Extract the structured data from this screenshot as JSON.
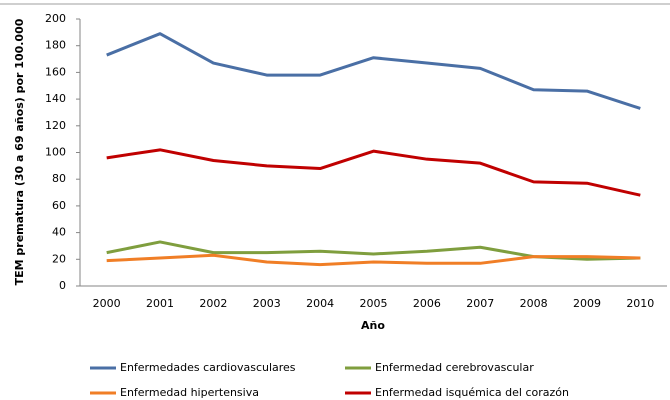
{
  "chart_data": {
    "type": "line",
    "y_label": "TEM prematura (30 a 69 años) por 100.000",
    "x_label": "Año",
    "categories": [
      "2000",
      "2001",
      "2002",
      "2003",
      "2004",
      "2005",
      "2006",
      "2007",
      "2008",
      "2009",
      "2010"
    ],
    "series": [
      {
        "name": "Enfermedades cardiovasculares",
        "color": "#4a6fa5",
        "values": [
          173,
          189,
          167,
          158,
          158,
          171,
          167,
          163,
          147,
          146,
          133
        ]
      },
      {
        "name": "Enfermedad cerebrovascular",
        "color": "#7f9e3e",
        "values": [
          25,
          33,
          25,
          25,
          26,
          24,
          26,
          29,
          22,
          20,
          21
        ]
      },
      {
        "name": "Enfermedad hipertensiva",
        "color": "#f07e26",
        "values": [
          19,
          21,
          23,
          18,
          16,
          18,
          17,
          17,
          22,
          22,
          21
        ]
      },
      {
        "name": "Enfermedad isquémica del corazón",
        "color": "#c00000",
        "values": [
          96,
          102,
          94,
          90,
          88,
          101,
          95,
          92,
          78,
          77,
          68
        ]
      }
    ],
    "ylim": [
      0,
      200
    ],
    "yticks": [
      0,
      20,
      40,
      60,
      80,
      100,
      120,
      140,
      160,
      180,
      200
    ],
    "grid": false
  }
}
